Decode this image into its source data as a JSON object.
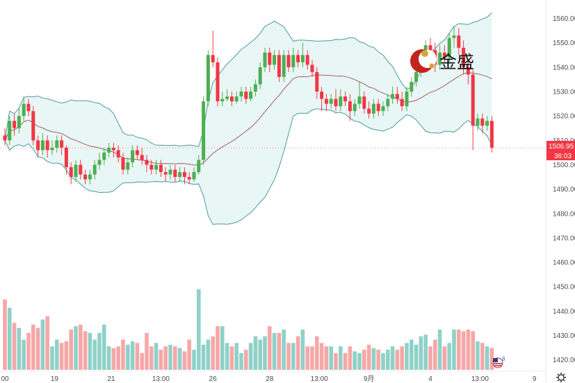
{
  "watermark": {
    "text": "金盛"
  },
  "price_tag": {
    "price": "1506.95",
    "countdown": "36:03"
  },
  "flag_badge": "8",
  "settings_icon": "gear-icon",
  "colors": {
    "up": "#4caf50",
    "down": "#f23645",
    "vol_up": "#8fd1c8",
    "vol_down": "#f6a7a7",
    "band_line": "#4a9a9a",
    "band_fill": "#e9f6f6",
    "mid_line": "#a0605a",
    "tag": "#f23645"
  },
  "chart_data": {
    "type": "candlestick",
    "y_axis": {
      "ticks": [
        1420,
        1430,
        1440,
        1450,
        1460,
        1470,
        1480,
        1490,
        1500,
        1510,
        1520,
        1530,
        1540,
        1550,
        1560
      ],
      "ylim": [
        1416.5,
        1565
      ]
    },
    "x_axis": {
      "ticks": [
        {
          "label": "00",
          "i": 0
        },
        {
          "label": "19",
          "i": 10.5
        },
        {
          "label": "21",
          "i": 22.5
        },
        {
          "label": "13:00",
          "i": 33
        },
        {
          "label": "26",
          "i": 44
        },
        {
          "label": "28",
          "i": 56
        },
        {
          "label": "13:00",
          "i": 66.5
        },
        {
          "label": "9月",
          "i": 77
        },
        {
          "label": "4",
          "i": 90
        },
        {
          "label": "13:00",
          "i": 100.5
        },
        {
          "label": "9",
          "i": 112
        }
      ]
    },
    "last_price": 1506.95,
    "candles": [
      [
        1512,
        1510,
        1515,
        1508
      ],
      [
        1510,
        1518,
        1520,
        1508
      ],
      [
        1518,
        1515,
        1521,
        1512
      ],
      [
        1515,
        1520,
        1523,
        1513
      ],
      [
        1520,
        1525,
        1528,
        1518
      ],
      [
        1525,
        1522,
        1527,
        1520
      ],
      [
        1522,
        1510,
        1524,
        1508
      ],
      [
        1510,
        1506,
        1512,
        1503
      ],
      [
        1506,
        1510,
        1513,
        1504
      ],
      [
        1510,
        1506,
        1512,
        1503
      ],
      [
        1506,
        1507,
        1510,
        1504
      ],
      [
        1507,
        1510,
        1512,
        1505
      ],
      [
        1510,
        1507,
        1512,
        1504
      ],
      [
        1507,
        1499,
        1508,
        1496
      ],
      [
        1499,
        1495,
        1501,
        1492
      ],
      [
        1495,
        1500,
        1502,
        1493
      ],
      [
        1500,
        1496,
        1502,
        1494
      ],
      [
        1496,
        1494,
        1498,
        1492
      ],
      [
        1494,
        1496,
        1498,
        1492
      ],
      [
        1496,
        1500,
        1502,
        1494
      ],
      [
        1500,
        1502,
        1505,
        1498
      ],
      [
        1502,
        1505,
        1507,
        1500
      ],
      [
        1505,
        1507,
        1509,
        1503
      ],
      [
        1507,
        1506,
        1509,
        1503
      ],
      [
        1506,
        1503,
        1508,
        1501
      ],
      [
        1503,
        1498,
        1505,
        1496
      ],
      [
        1498,
        1501,
        1503,
        1496
      ],
      [
        1501,
        1506,
        1508,
        1499
      ],
      [
        1506,
        1504,
        1508,
        1502
      ],
      [
        1504,
        1502,
        1507,
        1500
      ],
      [
        1502,
        1500,
        1504,
        1497
      ],
      [
        1500,
        1498,
        1502,
        1496
      ],
      [
        1498,
        1500,
        1502,
        1496
      ],
      [
        1500,
        1497,
        1502,
        1495
      ],
      [
        1497,
        1496,
        1499,
        1493
      ],
      [
        1496,
        1498,
        1500,
        1494
      ],
      [
        1498,
        1495,
        1500,
        1493
      ],
      [
        1495,
        1497,
        1499,
        1493
      ],
      [
        1497,
        1495,
        1499,
        1492
      ],
      [
        1495,
        1494,
        1497,
        1492
      ],
      [
        1494,
        1497,
        1499,
        1493
      ],
      [
        1497,
        1502,
        1504,
        1496
      ],
      [
        1502,
        1526,
        1528,
        1500
      ],
      [
        1526,
        1545,
        1547,
        1524
      ],
      [
        1545,
        1542,
        1555,
        1540
      ],
      [
        1542,
        1526,
        1544,
        1524
      ],
      [
        1526,
        1527,
        1530,
        1524
      ],
      [
        1527,
        1528,
        1531,
        1526
      ],
      [
        1528,
        1526,
        1530,
        1524
      ],
      [
        1526,
        1528,
        1530,
        1525
      ],
      [
        1528,
        1530,
        1532,
        1526
      ],
      [
        1530,
        1527,
        1532,
        1525
      ],
      [
        1527,
        1530,
        1532,
        1526
      ],
      [
        1530,
        1533,
        1535,
        1528
      ],
      [
        1533,
        1540,
        1542,
        1531
      ],
      [
        1540,
        1546,
        1548,
        1538
      ],
      [
        1546,
        1541,
        1548,
        1538
      ],
      [
        1541,
        1545,
        1547,
        1539
      ],
      [
        1545,
        1536,
        1547,
        1534
      ],
      [
        1536,
        1545,
        1547,
        1534
      ],
      [
        1545,
        1540,
        1547,
        1538
      ],
      [
        1540,
        1545,
        1548,
        1538
      ],
      [
        1545,
        1542,
        1547,
        1540
      ],
      [
        1542,
        1545,
        1550,
        1540
      ],
      [
        1545,
        1541,
        1547,
        1539
      ],
      [
        1541,
        1538,
        1543,
        1536
      ],
      [
        1538,
        1530,
        1540,
        1527
      ],
      [
        1530,
        1527,
        1532,
        1522
      ],
      [
        1527,
        1525,
        1529,
        1522
      ],
      [
        1525,
        1527,
        1529,
        1523
      ],
      [
        1527,
        1524,
        1531,
        1522
      ],
      [
        1524,
        1528,
        1531,
        1522
      ],
      [
        1528,
        1526,
        1530,
        1524
      ],
      [
        1526,
        1522,
        1529,
        1518
      ],
      [
        1522,
        1525,
        1527,
        1520
      ],
      [
        1525,
        1528,
        1534,
        1523
      ],
      [
        1528,
        1523,
        1530,
        1521
      ],
      [
        1523,
        1521,
        1526,
        1519
      ],
      [
        1521,
        1525,
        1527,
        1519
      ],
      [
        1525,
        1522,
        1527,
        1520
      ],
      [
        1522,
        1524,
        1526,
        1520
      ],
      [
        1524,
        1527,
        1529,
        1522
      ],
      [
        1527,
        1529,
        1532,
        1525
      ],
      [
        1529,
        1527,
        1532,
        1525
      ],
      [
        1527,
        1524,
        1530,
        1522
      ],
      [
        1524,
        1530,
        1532,
        1522
      ],
      [
        1530,
        1534,
        1536,
        1528
      ],
      [
        1534,
        1538,
        1541,
        1532
      ],
      [
        1538,
        1545,
        1547,
        1536
      ],
      [
        1545,
        1549,
        1551,
        1543
      ],
      [
        1549,
        1547,
        1552,
        1544
      ],
      [
        1547,
        1541,
        1550,
        1538
      ],
      [
        1541,
        1546,
        1549,
        1539
      ],
      [
        1546,
        1544,
        1549,
        1542
      ],
      [
        1544,
        1552,
        1554,
        1542
      ],
      [
        1552,
        1553,
        1557,
        1548
      ],
      [
        1553,
        1548,
        1556,
        1545
      ],
      [
        1548,
        1540,
        1551,
        1537
      ],
      [
        1540,
        1537,
        1543,
        1533
      ],
      [
        1537,
        1516,
        1539,
        1506
      ],
      [
        1516,
        1519,
        1521,
        1514
      ],
      [
        1519,
        1516,
        1521,
        1513
      ],
      [
        1516,
        1518,
        1520,
        1514
      ],
      [
        1518,
        1507,
        1520,
        1505
      ]
    ],
    "volume": [
      42,
      37,
      28,
      25,
      18,
      22,
      27,
      25,
      30,
      32,
      14,
      18,
      16,
      17,
      24,
      26,
      27,
      23,
      22,
      18,
      22,
      27,
      14,
      13,
      14,
      18,
      15,
      17,
      16,
      10,
      22,
      14,
      16,
      12,
      14,
      15,
      14,
      13,
      11,
      18,
      12,
      48,
      15,
      18,
      20,
      26,
      26,
      16,
      14,
      16,
      10,
      12,
      16,
      20,
      18,
      20,
      26,
      22,
      22,
      24,
      16,
      16,
      20,
      24,
      14,
      14,
      20,
      16,
      14,
      14,
      10,
      14,
      10,
      14,
      11,
      10,
      12,
      15,
      13,
      12,
      10,
      12,
      14,
      12,
      14,
      16,
      18,
      15,
      20,
      21,
      14,
      18,
      24,
      14,
      16,
      24,
      24,
      23,
      24,
      23,
      17,
      16,
      14,
      13
    ]
  }
}
